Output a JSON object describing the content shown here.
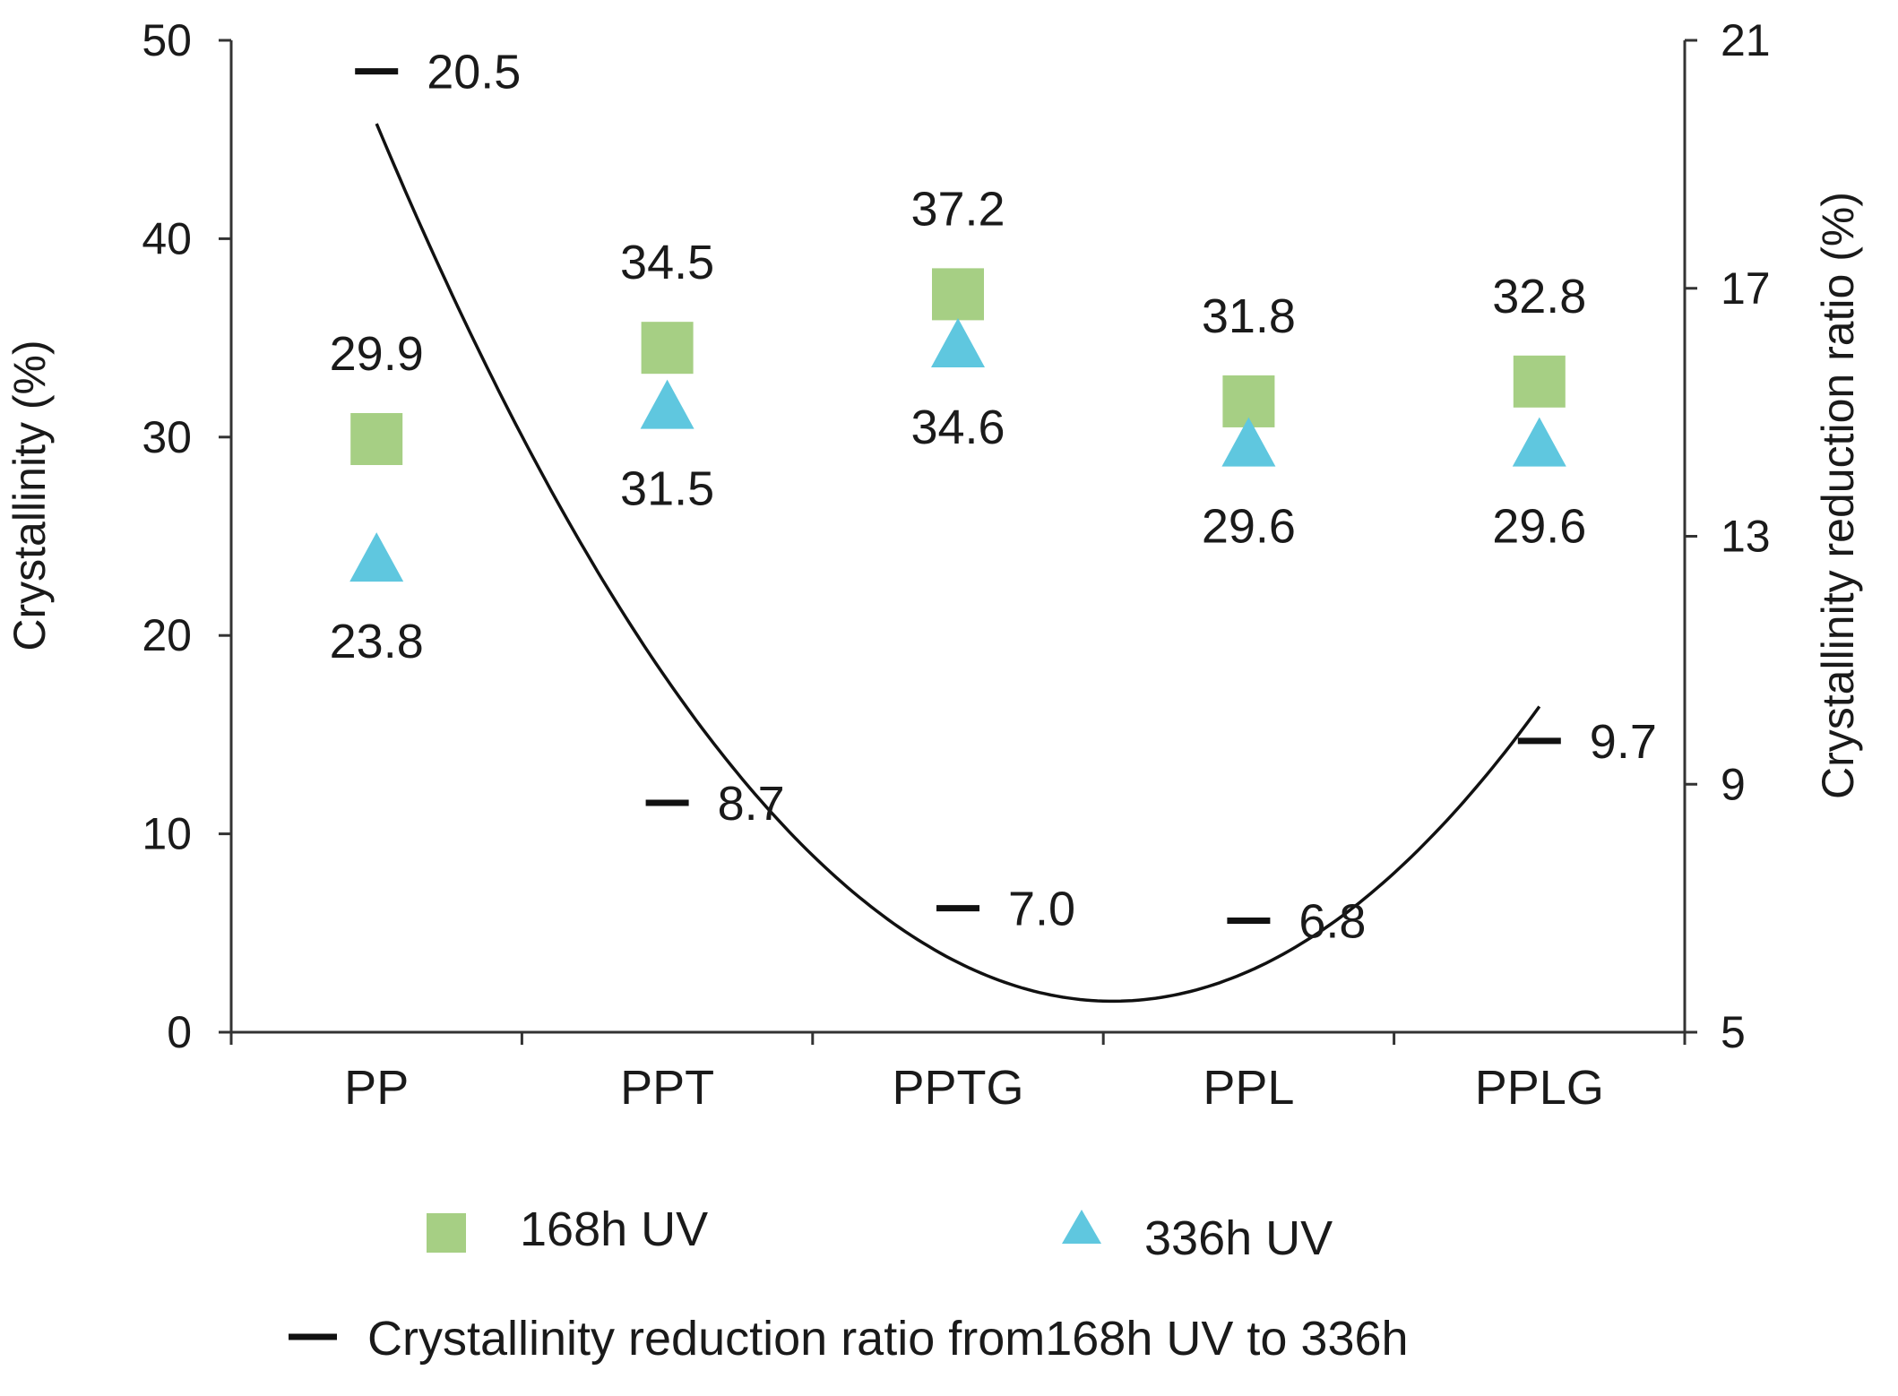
{
  "chart_data": {
    "type": "scatter",
    "categories": [
      "PP",
      "PPT",
      "PPTG",
      "PPL",
      "PPLG"
    ],
    "y_left": {
      "label": "Crystallinity (%)",
      "range": [
        0,
        50
      ],
      "ticks": [
        0,
        10,
        20,
        30,
        40,
        50
      ]
    },
    "y_right": {
      "label": "Crystallinity reduction ratio (%)",
      "range": [
        5,
        21
      ],
      "ticks": [
        5,
        9,
        13,
        17,
        21
      ]
    },
    "series": [
      {
        "name": "168h UV",
        "axis": "left",
        "marker": "square",
        "color": "#a6cf84",
        "values": [
          29.9,
          34.5,
          37.2,
          31.8,
          32.8
        ],
        "labels": [
          "29.9",
          "34.5",
          "37.2",
          "31.8",
          "32.8"
        ]
      },
      {
        "name": "336h UV",
        "axis": "left",
        "marker": "triangle",
        "color": "#5fc7df",
        "values": [
          23.8,
          31.5,
          34.6,
          29.6,
          29.6
        ],
        "labels": [
          "23.8",
          "31.5",
          "34.6",
          "29.6",
          "29.6"
        ]
      },
      {
        "name": "Crystallinity reduction ratio from168h UV to 336h",
        "axis": "right",
        "marker": "dash",
        "color": "#111111",
        "values": [
          20.5,
          8.7,
          7.0,
          6.8,
          9.7
        ],
        "labels": [
          "20.5",
          "8.7",
          "7.0",
          "6.8",
          "9.7"
        ],
        "trendline": "polynomial (order 2)"
      }
    ],
    "grid": false,
    "legend_position": "bottom"
  }
}
